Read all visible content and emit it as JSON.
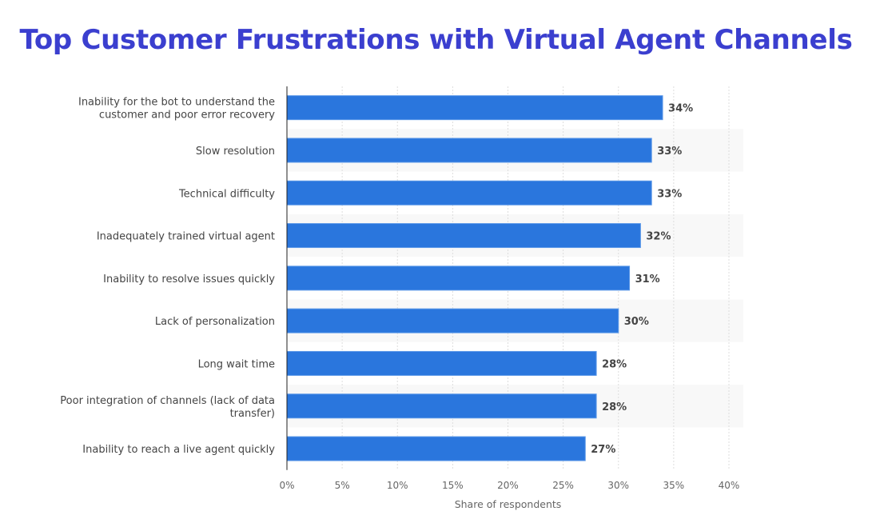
{
  "chart_data": {
    "type": "bar",
    "orientation": "horizontal",
    "title": "Top Customer Frustrations with Virtual Agent Channels",
    "xlabel": "Share of respondents",
    "ylabel": "",
    "xlim": [
      0,
      40
    ],
    "x_ticks": [
      "0%",
      "5%",
      "10%",
      "15%",
      "20%",
      "25%",
      "30%",
      "35%",
      "40%"
    ],
    "grid": true,
    "categories": [
      [
        "Inability for the bot to understand the",
        "customer and poor error recovery"
      ],
      [
        "Slow resolution"
      ],
      [
        "Technical difficulty"
      ],
      [
        "Inadequately trained virtual agent"
      ],
      [
        "Inability to resolve issues quickly"
      ],
      [
        "Lack of personalization"
      ],
      [
        "Long wait time"
      ],
      [
        "Poor integration of channels (lack of data",
        "transfer)"
      ],
      [
        "Inability to reach a live agent quickly"
      ]
    ],
    "values": [
      34,
      33,
      33,
      32,
      31,
      30,
      28,
      28,
      27
    ],
    "value_labels": [
      "34%",
      "33%",
      "33%",
      "32%",
      "31%",
      "30%",
      "28%",
      "28%",
      "27%"
    ],
    "colors": {
      "bar": "#2a76dd",
      "title": "#3b3fcf",
      "band": "#f8f8f8"
    }
  }
}
